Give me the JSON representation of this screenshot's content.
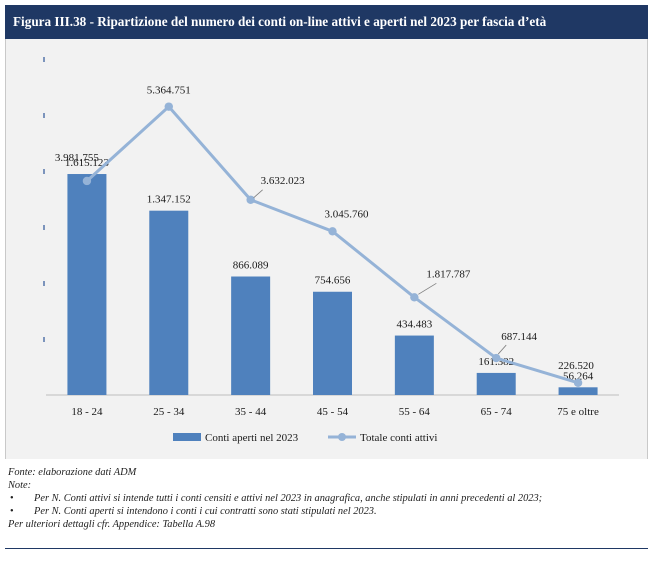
{
  "figure": {
    "title": "Figura III.38 - Ripartizione del numero dei conti on-line attivi e aperti nel 2023 per fascia d’età"
  },
  "colors": {
    "header_bg": "#1f3864",
    "bar": "#4f81bd",
    "line": "#95b3d7",
    "panel_bg": "#f2f2f2"
  },
  "chart_data": {
    "type": "bar",
    "categories": [
      "18 - 24",
      "25 - 34",
      "35 - 44",
      "45 - 54",
      "55 - 64",
      "65 - 74",
      "75 e oltre"
    ],
    "series": [
      {
        "name": "Conti aperti nel 2023",
        "type": "bar",
        "values": [
          1615123,
          1347152,
          866089,
          754656,
          434483,
          161382,
          56264
        ],
        "labels": [
          "1.615.123",
          "1.347.152",
          "866.089",
          "754.656",
          "434.483",
          "161.382",
          "56.264"
        ]
      },
      {
        "name": "Totale conti attivi",
        "type": "line",
        "values": [
          3981755,
          5364751,
          3632023,
          3045760,
          1817787,
          687144,
          226520
        ],
        "labels": [
          "3.981.755",
          "5.364.751",
          "3.632.023",
          "3.045.760",
          "1.817.787",
          "687.144",
          "226.520"
        ]
      }
    ],
    "ylim": [
      0,
      5600000
    ],
    "bar_ymax": 2200000,
    "legend": "bottom"
  },
  "notes": {
    "source": "Fonte: elaborazione dati ADM",
    "note_label": "Note:",
    "bullets": [
      "Per N. Conti attivi si intende tutti i conti censiti e attivi nel 2023 in anagrafica, anche stipulati in anni precedenti al 2023;",
      "Per N. Conti aperti si intendono i conti i cui contratti sono stati stipulati nel 2023."
    ],
    "bullet_glyph": "•",
    "more": "Per ulteriori dettagli cfr. Appendice: Tabella A.98"
  }
}
